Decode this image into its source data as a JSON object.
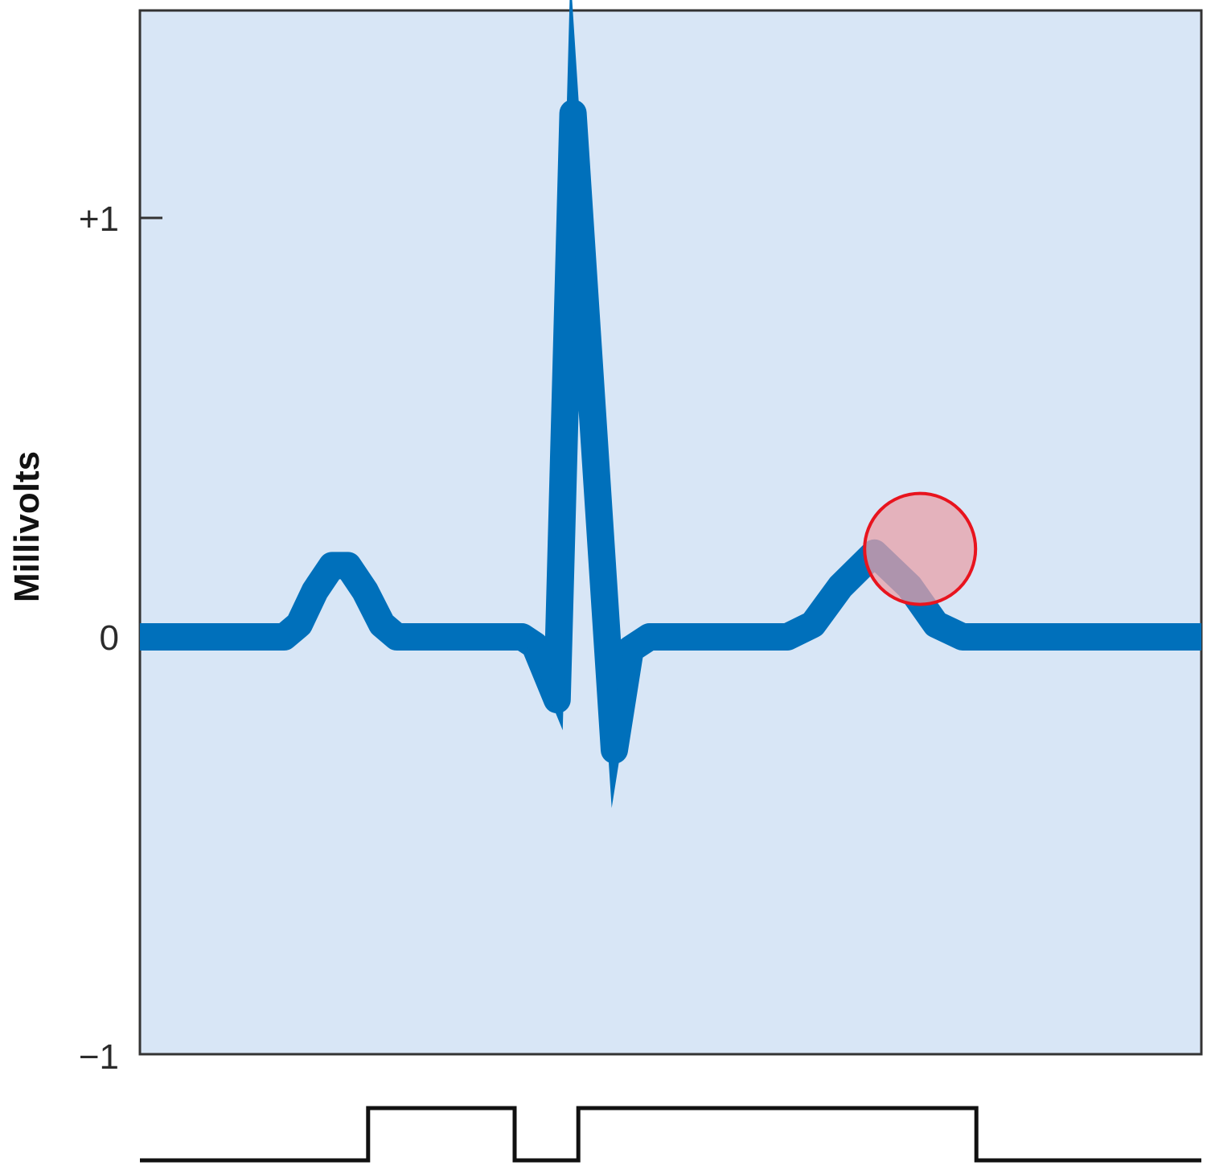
{
  "chart_data": {
    "type": "line",
    "title": "",
    "ylabel": "Millivolts",
    "xlabel": "",
    "ylim": [
      -1,
      1.25
    ],
    "y_ticks": [
      {
        "value": 1,
        "label": "+1"
      },
      {
        "value": 0,
        "label": "0"
      },
      {
        "value": -1,
        "label": "−1"
      }
    ],
    "grid": false,
    "legend": "none",
    "x_range": [
      0,
      1000
    ],
    "series": [
      {
        "color": "#0070bb",
        "points": [
          [
            0,
            0
          ],
          [
            136,
            0
          ],
          [
            150,
            0.03
          ],
          [
            165,
            0.11
          ],
          [
            181,
            0.17
          ],
          [
            196,
            0.17
          ],
          [
            212,
            0.11
          ],
          [
            228,
            0.03
          ],
          [
            242,
            0
          ],
          [
            360,
            0
          ],
          [
            372,
            -0.02
          ],
          [
            393,
            -0.15
          ],
          [
            408,
            1.25
          ],
          [
            447,
            -0.27
          ],
          [
            462,
            -0.03
          ],
          [
            480,
            0
          ],
          [
            610,
            0
          ],
          [
            634,
            0.03
          ],
          [
            660,
            0.12
          ],
          [
            692,
            0.2
          ],
          [
            725,
            0.12
          ],
          [
            750,
            0.03
          ],
          [
            775,
            0
          ],
          [
            1000,
            0
          ]
        ]
      }
    ],
    "highlight": {
      "x": 735,
      "y": 0.21,
      "fill": "#e8a0a8",
      "stroke": "#e8141e"
    },
    "phase_track": {
      "color": "#111111",
      "segments": [
        {
          "x": [
            0,
            215
          ],
          "level": "low"
        },
        {
          "x": [
            215,
            353
          ],
          "level": "high"
        },
        {
          "x": [
            353,
            413
          ],
          "level": "low"
        },
        {
          "x": [
            413,
            788
          ],
          "level": "high"
        },
        {
          "x": [
            788,
            1000
          ],
          "level": "low"
        }
      ]
    },
    "colors": {
      "plot_background": "#d8e6f6",
      "frame": "#333333"
    }
  }
}
